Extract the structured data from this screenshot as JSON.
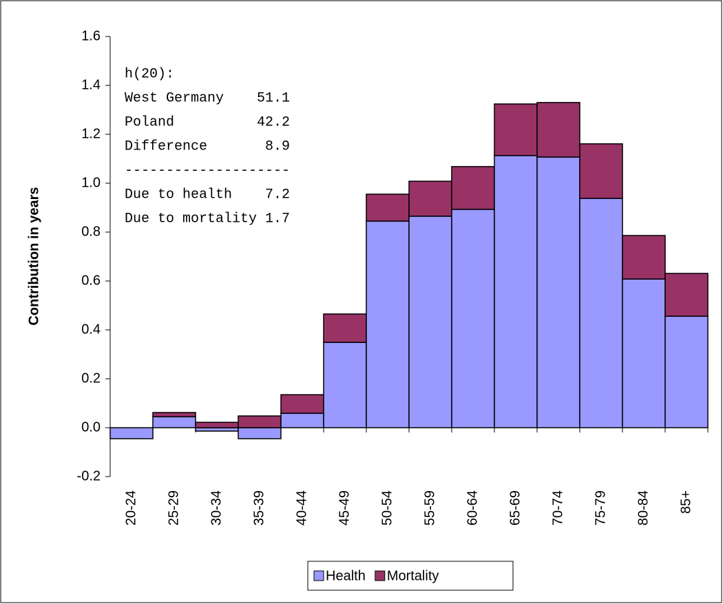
{
  "chart_data": {
    "type": "stacked_bar",
    "y_label": "Contribution in years",
    "categories": [
      "20-24",
      "25-29",
      "30-34",
      "35-39",
      "40-44",
      "45-49",
      "50-54",
      "55-59",
      "60-64",
      "65-69",
      "70-74",
      "75-79",
      "80-84",
      "85+"
    ],
    "series": [
      {
        "name": "Health",
        "color": "#9999ff",
        "values": [
          -0.045,
          0.045,
          -0.014,
          -0.045,
          0.059,
          0.349,
          0.845,
          0.865,
          0.893,
          1.113,
          1.107,
          0.938,
          0.608,
          0.456
        ]
      },
      {
        "name": "Mortality",
        "color": "#993366",
        "values": [
          0,
          0.017,
          0.022,
          0.048,
          0.076,
          0.116,
          0.11,
          0.143,
          0.175,
          0.211,
          0.223,
          0.223,
          0.178,
          0.175
        ]
      }
    ],
    "ylim": [
      -0.2,
      1.6
    ],
    "yticks": [
      -0.2,
      {
        "value": 0,
        "label": "0.0"
      },
      0.2,
      0.4,
      0.6,
      0.8,
      {
        "value": 1,
        "label": "1.0"
      },
      1.2,
      1.4,
      1.6
    ],
    "annotation": [
      "h(20):",
      "West Germany    51.1",
      "Poland          42.2",
      "Difference       8.9",
      "--------------------",
      "Due to health    7.2",
      "Due to mortality 1.7"
    ],
    "legend": "bottom"
  }
}
